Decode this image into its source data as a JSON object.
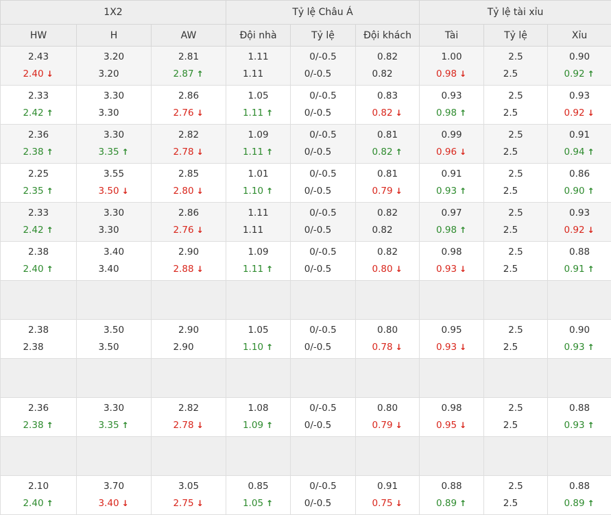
{
  "header": {
    "groups": [
      "1X2",
      "Tỷ lệ Châu Á",
      "Tỷ lệ tài xỉu"
    ],
    "columns": [
      "HW",
      "H",
      "AW",
      "Đội nhà",
      "Tỷ lệ",
      "Đội khách",
      "Tài",
      "Tỷ lệ",
      "Xỉu"
    ]
  },
  "colors": {
    "up": "#2e8b2e",
    "down": "#d9261c",
    "header_bg": "#eeeeee",
    "row_alt_bg": "#f5f5f5"
  },
  "icons": {
    "up": "↑",
    "down": "↓"
  },
  "rows": [
    {
      "empty": false,
      "cells": [
        {
          "top": "2.43",
          "bottom": "2.40",
          "trend": "down"
        },
        {
          "top": "3.20",
          "bottom": "3.20",
          "trend": ""
        },
        {
          "top": "2.81",
          "bottom": "2.87",
          "trend": "up"
        },
        {
          "top": "1.11",
          "bottom": "1.11",
          "trend": ""
        },
        {
          "top": "0/-0.5",
          "bottom": "0/-0.5",
          "trend": ""
        },
        {
          "top": "0.82",
          "bottom": "0.82",
          "trend": ""
        },
        {
          "top": "1.00",
          "bottom": "0.98",
          "trend": "down"
        },
        {
          "top": "2.5",
          "bottom": "2.5",
          "trend": ""
        },
        {
          "top": "0.90",
          "bottom": "0.92",
          "trend": "up"
        }
      ]
    },
    {
      "empty": false,
      "cells": [
        {
          "top": "2.33",
          "bottom": "2.42",
          "trend": "up"
        },
        {
          "top": "3.30",
          "bottom": "3.30",
          "trend": ""
        },
        {
          "top": "2.86",
          "bottom": "2.76",
          "trend": "down"
        },
        {
          "top": "1.05",
          "bottom": "1.11",
          "trend": "up"
        },
        {
          "top": "0/-0.5",
          "bottom": "0/-0.5",
          "trend": ""
        },
        {
          "top": "0.83",
          "bottom": "0.82",
          "trend": "down"
        },
        {
          "top": "0.93",
          "bottom": "0.98",
          "trend": "up"
        },
        {
          "top": "2.5",
          "bottom": "2.5",
          "trend": ""
        },
        {
          "top": "0.93",
          "bottom": "0.92",
          "trend": "down"
        }
      ]
    },
    {
      "empty": false,
      "cells": [
        {
          "top": "2.36",
          "bottom": "2.38",
          "trend": "up"
        },
        {
          "top": "3.30",
          "bottom": "3.35",
          "trend": "up"
        },
        {
          "top": "2.82",
          "bottom": "2.78",
          "trend": "down"
        },
        {
          "top": "1.09",
          "bottom": "1.11",
          "trend": "up"
        },
        {
          "top": "0/-0.5",
          "bottom": "0/-0.5",
          "trend": ""
        },
        {
          "top": "0.81",
          "bottom": "0.82",
          "trend": "up"
        },
        {
          "top": "0.99",
          "bottom": "0.96",
          "trend": "down"
        },
        {
          "top": "2.5",
          "bottom": "2.5",
          "trend": ""
        },
        {
          "top": "0.91",
          "bottom": "0.94",
          "trend": "up"
        }
      ]
    },
    {
      "empty": false,
      "cells": [
        {
          "top": "2.25",
          "bottom": "2.35",
          "trend": "up"
        },
        {
          "top": "3.55",
          "bottom": "3.50",
          "trend": "down"
        },
        {
          "top": "2.85",
          "bottom": "2.80",
          "trend": "down"
        },
        {
          "top": "1.01",
          "bottom": "1.10",
          "trend": "up"
        },
        {
          "top": "0/-0.5",
          "bottom": "0/-0.5",
          "trend": ""
        },
        {
          "top": "0.81",
          "bottom": "0.79",
          "trend": "down"
        },
        {
          "top": "0.91",
          "bottom": "0.93",
          "trend": "up"
        },
        {
          "top": "2.5",
          "bottom": "2.5",
          "trend": ""
        },
        {
          "top": "0.86",
          "bottom": "0.90",
          "trend": "up"
        }
      ]
    },
    {
      "empty": false,
      "cells": [
        {
          "top": "2.33",
          "bottom": "2.42",
          "trend": "up"
        },
        {
          "top": "3.30",
          "bottom": "3.30",
          "trend": ""
        },
        {
          "top": "2.86",
          "bottom": "2.76",
          "trend": "down"
        },
        {
          "top": "1.11",
          "bottom": "1.11",
          "trend": ""
        },
        {
          "top": "0/-0.5",
          "bottom": "0/-0.5",
          "trend": ""
        },
        {
          "top": "0.82",
          "bottom": "0.82",
          "trend": ""
        },
        {
          "top": "0.97",
          "bottom": "0.98",
          "trend": "up"
        },
        {
          "top": "2.5",
          "bottom": "2.5",
          "trend": ""
        },
        {
          "top": "0.93",
          "bottom": "0.92",
          "trend": "down"
        }
      ]
    },
    {
      "empty": false,
      "cells": [
        {
          "top": "2.38",
          "bottom": "2.40",
          "trend": "up"
        },
        {
          "top": "3.40",
          "bottom": "3.40",
          "trend": ""
        },
        {
          "top": "2.90",
          "bottom": "2.88",
          "trend": "down"
        },
        {
          "top": "1.09",
          "bottom": "1.11",
          "trend": "up"
        },
        {
          "top": "0/-0.5",
          "bottom": "0/-0.5",
          "trend": ""
        },
        {
          "top": "0.82",
          "bottom": "0.80",
          "trend": "down"
        },
        {
          "top": "0.98",
          "bottom": "0.93",
          "trend": "down"
        },
        {
          "top": "2.5",
          "bottom": "2.5",
          "trend": ""
        },
        {
          "top": "0.88",
          "bottom": "0.91",
          "trend": "up"
        }
      ]
    },
    {
      "empty": true,
      "cells": []
    },
    {
      "empty": false,
      "cells": [
        {
          "top": "2.38",
          "bottom": "2.38",
          "trend": ""
        },
        {
          "top": "3.50",
          "bottom": "3.50",
          "trend": ""
        },
        {
          "top": "2.90",
          "bottom": "2.90",
          "trend": ""
        },
        {
          "top": "1.05",
          "bottom": "1.10",
          "trend": "up"
        },
        {
          "top": "0/-0.5",
          "bottom": "0/-0.5",
          "trend": ""
        },
        {
          "top": "0.80",
          "bottom": "0.78",
          "trend": "down"
        },
        {
          "top": "0.95",
          "bottom": "0.93",
          "trend": "down"
        },
        {
          "top": "2.5",
          "bottom": "2.5",
          "trend": ""
        },
        {
          "top": "0.90",
          "bottom": "0.93",
          "trend": "up"
        }
      ]
    },
    {
      "empty": true,
      "cells": []
    },
    {
      "empty": false,
      "cells": [
        {
          "top": "2.36",
          "bottom": "2.38",
          "trend": "up"
        },
        {
          "top": "3.30",
          "bottom": "3.35",
          "trend": "up"
        },
        {
          "top": "2.82",
          "bottom": "2.78",
          "trend": "down"
        },
        {
          "top": "1.08",
          "bottom": "1.09",
          "trend": "up"
        },
        {
          "top": "0/-0.5",
          "bottom": "0/-0.5",
          "trend": ""
        },
        {
          "top": "0.80",
          "bottom": "0.79",
          "trend": "down"
        },
        {
          "top": "0.98",
          "bottom": "0.95",
          "trend": "down"
        },
        {
          "top": "2.5",
          "bottom": "2.5",
          "trend": ""
        },
        {
          "top": "0.88",
          "bottom": "0.93",
          "trend": "up"
        }
      ]
    },
    {
      "empty": true,
      "cells": []
    },
    {
      "empty": false,
      "cells": [
        {
          "top": "2.10",
          "bottom": "2.40",
          "trend": "up"
        },
        {
          "top": "3.70",
          "bottom": "3.40",
          "trend": "down"
        },
        {
          "top": "3.05",
          "bottom": "2.75",
          "trend": "down"
        },
        {
          "top": "0.85",
          "bottom": "1.05",
          "trend": "up"
        },
        {
          "top": "0/-0.5",
          "bottom": "0/-0.5",
          "trend": ""
        },
        {
          "top": "0.91",
          "bottom": "0.75",
          "trend": "down"
        },
        {
          "top": "0.88",
          "bottom": "0.89",
          "trend": "up"
        },
        {
          "top": "2.5",
          "bottom": "2.5",
          "trend": ""
        },
        {
          "top": "0.88",
          "bottom": "0.89",
          "trend": "up"
        }
      ]
    }
  ]
}
